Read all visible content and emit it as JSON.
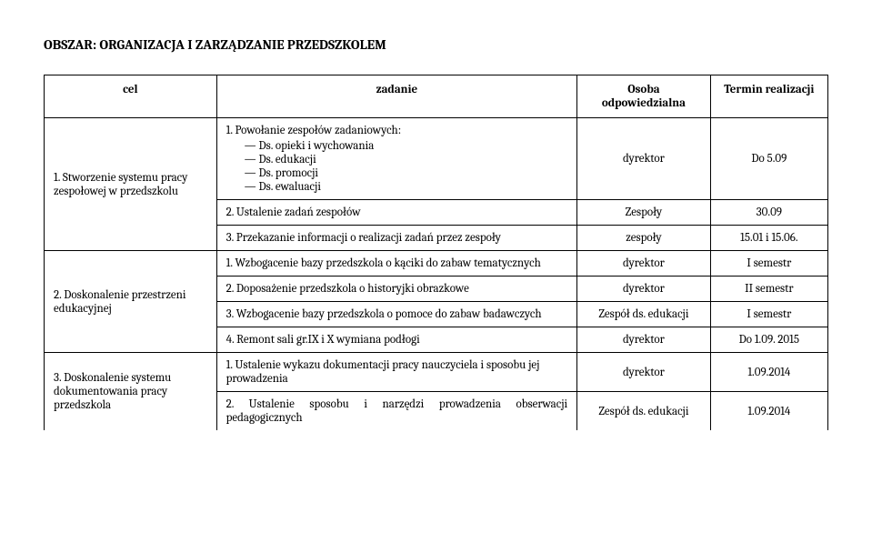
{
  "section_title": "OBSZAR: ORGANIZACJA I ZARZĄDZANIE PRZEDSZKOLEM",
  "headers": {
    "cel": "cel",
    "zadanie": "zadanie",
    "osoba": "Osoba odpowiedzialna",
    "termin": "Termin realizacji"
  },
  "cel1": "1. Stworzenie systemu pracy zespołowej w przedszkolu",
  "cel2": "2. Doskonalenie przestrzeni edukacyjnej",
  "cel3": "3. Doskonalenie systemu dokumentowania pracy przedszkola",
  "c1": {
    "z1_lead": "1. Powołanie zespołów zadaniowych:",
    "z1_items": [
      "Ds. opieki i wychowania",
      "Ds. edukacji",
      "Ds. promocji",
      "Ds. ewaluacji"
    ],
    "z1_osoba": "dyrektor",
    "z1_termin": "Do 5.09",
    "z2": "2. Ustalenie zadań zespołów",
    "z2_osoba": "Zespoły",
    "z2_termin": "30.09",
    "z3": "3. Przekazanie informacji o realizacji zadań przez zespoły",
    "z3_osoba": "zespoły",
    "z3_termin": "15.01 i 15.06."
  },
  "c2": {
    "z1": "1. Wzbogacenie bazy przedszkola o kąciki do zabaw tematycznych",
    "z1_osoba": "dyrektor",
    "z1_termin": "I semestr",
    "z2": "2. Doposażenie przedszkola o historyjki obrazkowe",
    "z2_osoba": "dyrektor",
    "z2_termin": "II semestr",
    "z3": "3. Wzbogacenie bazy przedszkola o pomoce do zabaw badawczych",
    "z3_osoba": "Zespół ds. edukacji",
    "z3_termin": "I semestr",
    "z4": "4. Remont sali gr.IX i X wymiana podłogi",
    "z4_osoba": "dyrektor",
    "z4_termin": "Do 1.09. 2015"
  },
  "c3": {
    "z1": "1. Ustalenie wykazu dokumentacji pracy nauczyciela i sposobu jej prowadzenia",
    "z1_osoba": "dyrektor",
    "z1_termin": "1.09.2014",
    "z2": "2. Ustalenie sposobu i narzędzi prowadzenia obserwacji pedagogicznych",
    "z2_osoba": "Zespół ds. edukacji",
    "z2_termin": "1.09.2014"
  }
}
